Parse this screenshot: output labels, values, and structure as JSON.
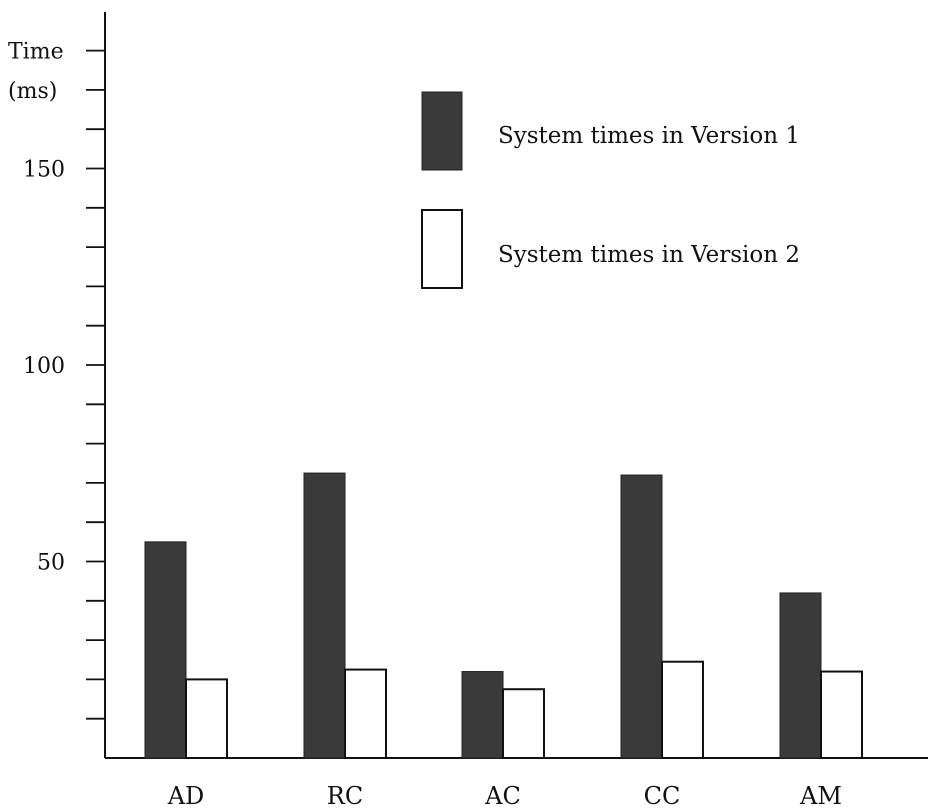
{
  "chart_data": {
    "type": "bar",
    "ylabel_line1": "Time",
    "ylabel_line2": "(ms)",
    "ylim": [
      0,
      185
    ],
    "y_major_ticks": [
      50,
      100,
      150
    ],
    "y_minor_step": 10,
    "categories": [
      "AD",
      "RC",
      "AC",
      "CC",
      "AM"
    ],
    "series": [
      {
        "name": "System times in Version 1",
        "values": [
          55,
          72.5,
          22,
          72,
          42
        ],
        "color": "#3a3a3a",
        "edge": "#222222"
      },
      {
        "name": "System times in Version 2",
        "values": [
          20,
          22.5,
          17.5,
          24.5,
          22
        ],
        "color": "#ffffff",
        "edge": "#111111"
      }
    ],
    "legend_position": "top-center",
    "grid": false
  }
}
